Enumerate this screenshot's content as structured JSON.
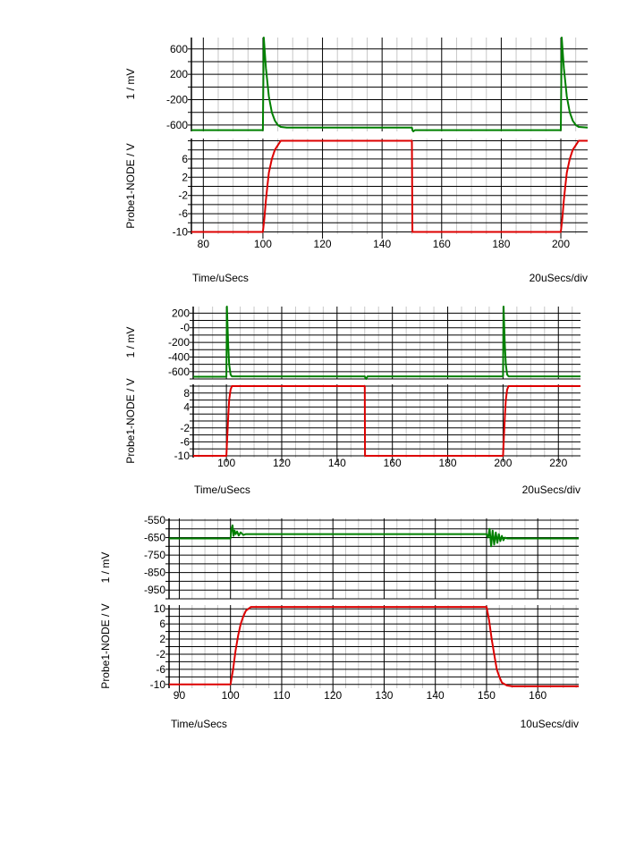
{
  "chart_data": [
    {
      "type": "line",
      "xlabel": "Time/uSecs",
      "scale_label": "20uSecs/div",
      "xlim": [
        76,
        209
      ],
      "xticks": [
        80,
        100,
        120,
        140,
        160,
        180,
        200
      ],
      "panels": [
        {
          "ylabel": "1 / mV",
          "ylim": [
            -700,
            780
          ],
          "yticks": [
            -600,
            -200,
            200,
            600
          ],
          "ytick_labels": [
            "-600",
            "-200",
            "200",
            "600"
          ],
          "series": [
            {
              "color": "#008000",
              "x": [
                76,
                100,
                100.3,
                101,
                102,
                103,
                104,
                105,
                106,
                108,
                150,
                150.2,
                150.5,
                151,
                200,
                200.3,
                201,
                202,
                203,
                204,
                205,
                206,
                209
              ],
              "y": [
                -680,
                -680,
                780,
                300,
                -150,
                -400,
                -530,
                -600,
                -630,
                -640,
                -640,
                -680,
                -720,
                -680,
                -680,
                780,
                300,
                -150,
                -400,
                -530,
                -600,
                -630,
                -640
              ]
            }
          ]
        },
        {
          "ylabel": "Probe1-NODE / V",
          "ylim": [
            -10.5,
            10.5
          ],
          "yticks": [
            -10,
            -6,
            -2,
            2,
            6
          ],
          "ytick_labels": [
            "-10",
            "-6",
            "-2",
            "2",
            "6"
          ],
          "series": [
            {
              "color": "#dd0000",
              "x": [
                76,
                100,
                100.5,
                101,
                101.5,
                102,
                103,
                104,
                105,
                106,
                150,
                150.2,
                151,
                200,
                200.5,
                201,
                201.5,
                202,
                203,
                204,
                205,
                206,
                209
              ],
              "y": [
                -10,
                -10,
                -7,
                -3,
                0,
                3,
                6,
                8,
                9,
                10,
                10,
                -10,
                -10,
                -10,
                -7,
                -3,
                0,
                3,
                6,
                8,
                9,
                10,
                10
              ]
            }
          ]
        }
      ]
    },
    {
      "type": "line",
      "xlabel": "Time/uSecs",
      "scale_label": "20uSecs/div",
      "xlim": [
        88,
        228
      ],
      "xticks": [
        100,
        120,
        140,
        160,
        180,
        200,
        220
      ],
      "panels": [
        {
          "ylabel": "1 / mV",
          "ylim": [
            -700,
            290
          ],
          "yticks": [
            -600,
            -400,
            -200,
            0,
            200
          ],
          "ytick_labels": [
            "-600",
            "-400",
            "-200",
            "-0",
            "200"
          ],
          "series": [
            {
              "color": "#008000",
              "x": [
                88,
                100,
                100.2,
                100.6,
                101,
                101.5,
                102,
                150,
                150.2,
                150.5,
                151,
                200,
                200.2,
                200.6,
                201,
                201.5,
                202,
                228
              ],
              "y": [
                -670,
                -670,
                290,
                -200,
                -500,
                -640,
                -665,
                -665,
                -680,
                -700,
                -665,
                -665,
                290,
                -200,
                -500,
                -640,
                -665,
                -665
              ]
            }
          ]
        },
        {
          "ylabel": "Probe1-NODE / V",
          "ylim": [
            -10.5,
            10.5
          ],
          "yticks": [
            -10,
            -6,
            -2,
            4,
            8
          ],
          "ytick_labels": [
            "-10",
            "-6",
            "-2",
            "4",
            "8"
          ],
          "series": [
            {
              "color": "#dd0000",
              "x": [
                88,
                100,
                100.3,
                100.7,
                101,
                101.5,
                102,
                150,
                150.1,
                151,
                200,
                200.3,
                200.7,
                201,
                201.5,
                202,
                228
              ],
              "y": [
                -10,
                -10,
                -5,
                2,
                6,
                9,
                10,
                10,
                -10,
                -10,
                -10,
                -5,
                2,
                6,
                9,
                10,
                10
              ]
            }
          ]
        }
      ]
    },
    {
      "type": "line",
      "xlabel": "Time/uSecs",
      "scale_label": "10uSecs/div",
      "xlim": [
        88,
        168
      ],
      "xticks": [
        90,
        100,
        110,
        120,
        130,
        140,
        150,
        160
      ],
      "panels": [
        {
          "ylabel": "1 / mV",
          "ylim": [
            -1000,
            -540
          ],
          "yticks": [
            -950,
            -850,
            -750,
            -650,
            -550
          ],
          "ytick_labels": [
            "-950",
            "-850",
            "-750",
            "-650",
            "-550"
          ],
          "series": [
            {
              "color": "#008000",
              "x": [
                88,
                100,
                100.2,
                100.4,
                100.6,
                100.8,
                101,
                101.3,
                101.6,
                102,
                102.5,
                103,
                150,
                150.3,
                150.6,
                150.9,
                151.2,
                151.5,
                151.8,
                152.1,
                152.4,
                152.7,
                153,
                153.3,
                153.6,
                154,
                155,
                168
              ],
              "y": [
                -655,
                -655,
                -600,
                -580,
                -640,
                -610,
                -630,
                -615,
                -638,
                -620,
                -635,
                -630,
                -630,
                -650,
                -600,
                -700,
                -610,
                -690,
                -620,
                -680,
                -630,
                -670,
                -640,
                -665,
                -650,
                -655,
                -655,
                -655
              ]
            }
          ]
        },
        {
          "ylabel": "Probe1-NODE / V",
          "ylim": [
            -11,
            11
          ],
          "yticks": [
            -10,
            -6,
            -2,
            2,
            6,
            10
          ],
          "ytick_labels": [
            "-10",
            "-6",
            "-2",
            "2",
            "6",
            "10"
          ],
          "series": [
            {
              "color": "#dd0000",
              "x": [
                88,
                100,
                100.5,
                101,
                101.5,
                102,
                102.5,
                103,
                104,
                105,
                150,
                150.5,
                151,
                151.5,
                152,
                152.5,
                153,
                154,
                155,
                168
              ],
              "y": [
                -10,
                -10,
                -6,
                -1,
                3,
                6,
                8,
                9.5,
                10.5,
                10.5,
                10.5,
                7,
                2,
                -2,
                -6,
                -8,
                -9.5,
                -10.3,
                -10.5,
                -10.5
              ]
            }
          ]
        }
      ]
    }
  ]
}
